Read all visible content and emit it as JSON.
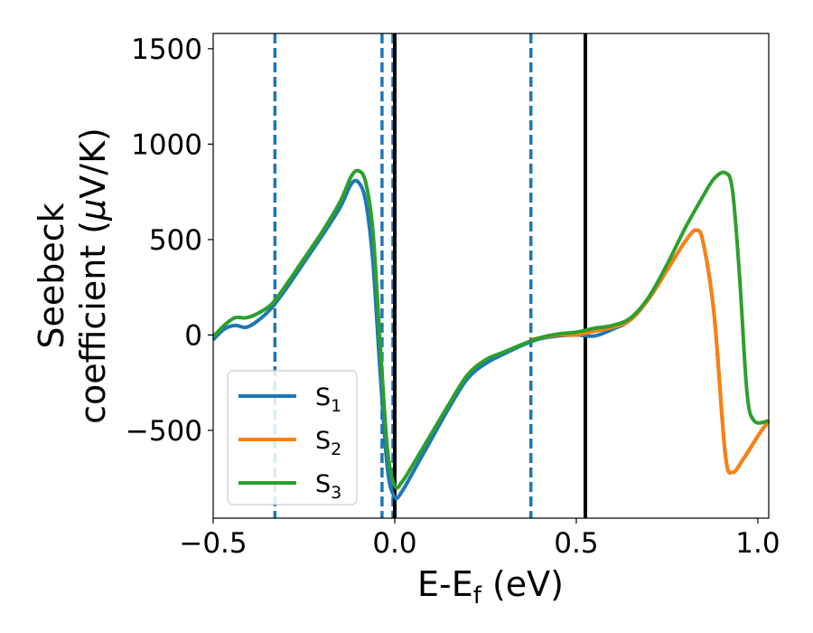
{
  "chart_data": {
    "type": "line",
    "xlabel": "E-E",
    "xlabel_sub": "f",
    "xlabel_unit": " (eV)",
    "ylabel_line1": "Seebeck",
    "ylabel_line2": "coefficient  (",
    "ylabel_mu": "μ",
    "ylabel_tail": "V/K)",
    "xlim": [
      -0.5,
      1.03
    ],
    "ylim": [
      -960,
      1580
    ],
    "x_ticks": [
      -0.5,
      0.0,
      0.5,
      1.0
    ],
    "x_tick_labels": [
      "−0.5",
      "0.0",
      "0.5",
      "1.0"
    ],
    "y_ticks": [
      -500,
      0,
      500,
      1000,
      1500
    ],
    "y_tick_labels": [
      "−500",
      "0",
      "500",
      "1000",
      "1500"
    ],
    "grid": false,
    "legend_position": "lower-left",
    "vlines": [
      {
        "x": -0.33,
        "style": "dashed",
        "color": "#1f77b4"
      },
      {
        "x": -0.035,
        "style": "dashed",
        "color": "#1f77b4"
      },
      {
        "x": -0.005,
        "style": "dashed",
        "color": "#1f77b4"
      },
      {
        "x": 0.0,
        "style": "solid",
        "color": "#000000"
      },
      {
        "x": 0.375,
        "style": "dashed",
        "color": "#1f77b4"
      },
      {
        "x": 0.525,
        "style": "solid",
        "color": "#000000"
      }
    ],
    "series": [
      {
        "name": "S",
        "sub": "1",
        "color": "#1f77b4",
        "points": [
          [
            -0.5,
            -25
          ],
          [
            -0.47,
            30
          ],
          [
            -0.44,
            50
          ],
          [
            -0.41,
            40
          ],
          [
            -0.38,
            70
          ],
          [
            -0.34,
            140
          ],
          [
            -0.3,
            240
          ],
          [
            -0.25,
            380
          ],
          [
            -0.2,
            520
          ],
          [
            -0.15,
            670
          ],
          [
            -0.12,
            790
          ],
          [
            -0.1,
            800
          ],
          [
            -0.08,
            700
          ],
          [
            -0.06,
            380
          ],
          [
            -0.04,
            -200
          ],
          [
            -0.02,
            -700
          ],
          [
            0.0,
            -850
          ],
          [
            0.02,
            -820
          ],
          [
            0.05,
            -720
          ],
          [
            0.1,
            -550
          ],
          [
            0.15,
            -380
          ],
          [
            0.2,
            -230
          ],
          [
            0.25,
            -150
          ],
          [
            0.3,
            -100
          ],
          [
            0.35,
            -55
          ],
          [
            0.4,
            -20
          ],
          [
            0.45,
            -5
          ],
          [
            0.5,
            0
          ],
          [
            0.55,
            -5
          ],
          [
            0.6,
            30
          ],
          [
            0.65,
            80
          ],
          [
            0.7,
            190
          ],
          [
            0.75,
            340
          ],
          [
            0.8,
            490
          ],
          [
            0.83,
            550
          ],
          [
            0.85,
            480
          ],
          [
            0.88,
            100
          ],
          [
            0.91,
            -620
          ],
          [
            0.93,
            -720
          ],
          [
            0.96,
            -650
          ],
          [
            1.0,
            -530
          ],
          [
            1.03,
            -450
          ]
        ]
      },
      {
        "name": "S",
        "sub": "2",
        "color": "#ff7f0e",
        "points": [
          [
            0.375,
            -25
          ],
          [
            0.4,
            -15
          ],
          [
            0.45,
            0
          ],
          [
            0.5,
            0
          ],
          [
            0.55,
            20
          ],
          [
            0.6,
            40
          ],
          [
            0.65,
            80
          ],
          [
            0.7,
            190
          ],
          [
            0.75,
            340
          ],
          [
            0.8,
            490
          ],
          [
            0.83,
            550
          ],
          [
            0.85,
            480
          ],
          [
            0.88,
            100
          ],
          [
            0.91,
            -620
          ],
          [
            0.93,
            -720
          ],
          [
            0.96,
            -650
          ],
          [
            1.0,
            -530
          ],
          [
            1.03,
            -450
          ]
        ]
      },
      {
        "name": "S",
        "sub": "3",
        "color": "#2ca02c",
        "points": [
          [
            -0.5,
            -10
          ],
          [
            -0.47,
            50
          ],
          [
            -0.44,
            90
          ],
          [
            -0.41,
            90
          ],
          [
            -0.38,
            110
          ],
          [
            -0.34,
            160
          ],
          [
            -0.3,
            260
          ],
          [
            -0.25,
            400
          ],
          [
            -0.2,
            540
          ],
          [
            -0.15,
            700
          ],
          [
            -0.12,
            830
          ],
          [
            -0.1,
            860
          ],
          [
            -0.08,
            800
          ],
          [
            -0.06,
            540
          ],
          [
            -0.04,
            -50
          ],
          [
            -0.02,
            -600
          ],
          [
            0.0,
            -790
          ],
          [
            0.02,
            -770
          ],
          [
            0.05,
            -680
          ],
          [
            0.1,
            -520
          ],
          [
            0.15,
            -360
          ],
          [
            0.2,
            -210
          ],
          [
            0.25,
            -130
          ],
          [
            0.3,
            -90
          ],
          [
            0.35,
            -50
          ],
          [
            0.4,
            -15
          ],
          [
            0.45,
            5
          ],
          [
            0.5,
            15
          ],
          [
            0.55,
            35
          ],
          [
            0.6,
            50
          ],
          [
            0.65,
            90
          ],
          [
            0.7,
            200
          ],
          [
            0.75,
            370
          ],
          [
            0.8,
            560
          ],
          [
            0.85,
            730
          ],
          [
            0.88,
            820
          ],
          [
            0.91,
            850
          ],
          [
            0.93,
            760
          ],
          [
            0.95,
            300
          ],
          [
            0.97,
            -300
          ],
          [
            0.99,
            -450
          ],
          [
            1.03,
            -450
          ]
        ]
      }
    ]
  }
}
